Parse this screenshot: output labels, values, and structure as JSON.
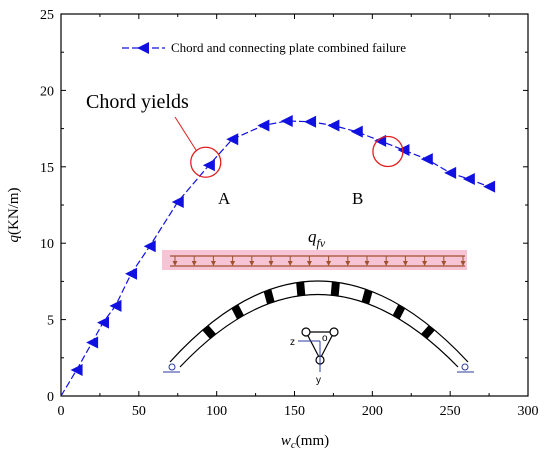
{
  "chart_data": {
    "type": "line",
    "x": [
      10,
      20,
      27,
      35,
      45,
      57,
      75,
      95,
      110,
      130,
      145,
      160,
      175,
      190,
      205,
      220,
      235,
      250,
      262,
      275
    ],
    "series": [
      {
        "name": "Chord and connecting plate combined failure",
        "color": "#1010e0",
        "values": [
          1.7,
          3.5,
          4.8,
          5.9,
          8.0,
          9.8,
          12.7,
          15.1,
          16.8,
          17.7,
          18.0,
          17.95,
          17.7,
          17.3,
          16.7,
          16.1,
          15.5,
          14.6,
          14.2,
          13.7
        ]
      }
    ],
    "xlim": [
      0,
      300
    ],
    "ylim": [
      0,
      25
    ],
    "xticks": [
      0,
      50,
      100,
      150,
      200,
      250,
      300
    ],
    "yticks": [
      0,
      5,
      10,
      15,
      20,
      25
    ],
    "xlabel": {
      "main": "w",
      "sub": "c",
      "unit": "(mm)"
    },
    "ylabel": {
      "main": "q",
      "unit": "(KN/m)"
    },
    "legend_placement": "top",
    "grid": false,
    "annotations": {
      "yield_text": "Chord yields",
      "point_a_label": "A",
      "point_b_label": "B",
      "point_a": {
        "x": 93,
        "y": 15.3
      },
      "point_b": {
        "x": 210,
        "y": 16.0
      },
      "callout_color": "#e02020",
      "load_label_main": "q",
      "load_label_sub": "fv",
      "load_color": "#a0522d",
      "load_band_color": "#f6c4d4",
      "section_labels": {
        "z": "z",
        "o": "o",
        "y": "y"
      }
    }
  }
}
